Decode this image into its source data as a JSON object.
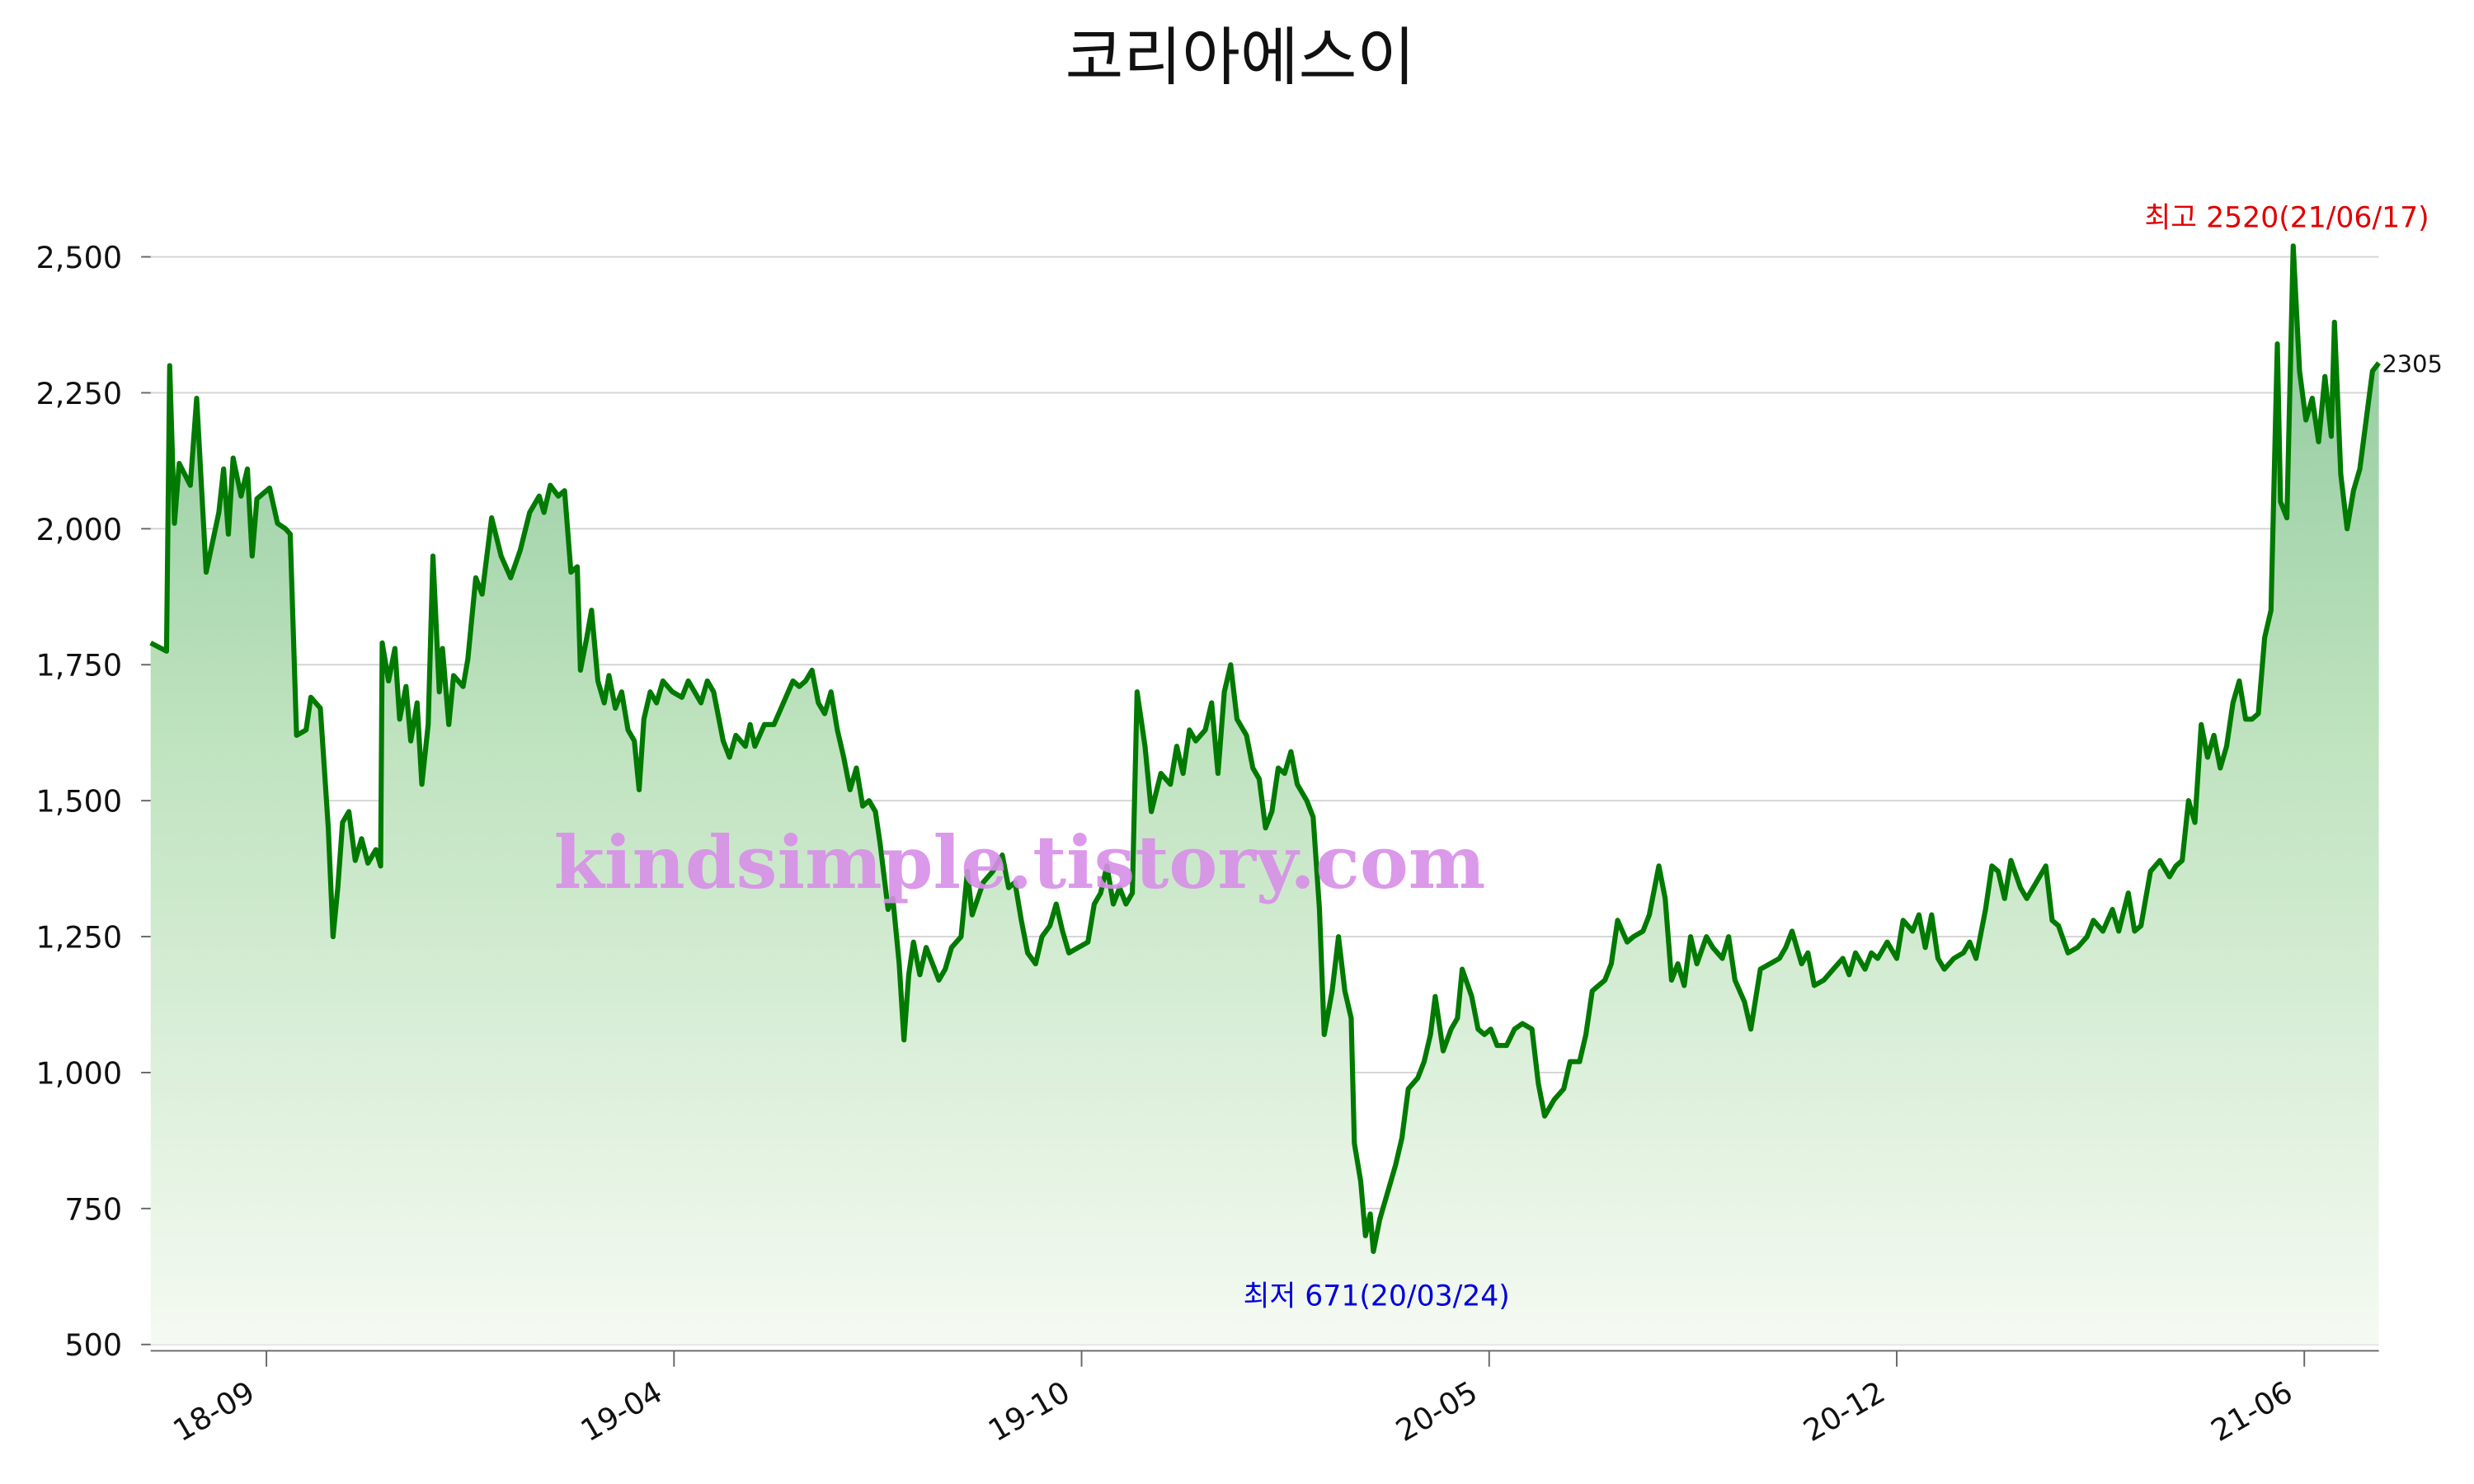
{
  "chart_data": {
    "type": "line",
    "title": "코리아에스이",
    "watermark": "kindsimple.tistory.com",
    "annotations": {
      "high": "최고 2520(21/06/17)",
      "low": "최저 671(20/03/24)"
    },
    "xlim": [
      0,
      1405
    ],
    "xticks": [
      {
        "value": 73,
        "label": "18-09"
      },
      {
        "value": 330,
        "label": "19-04"
      },
      {
        "value": 587,
        "label": "19-10"
      },
      {
        "value": 844,
        "label": "20-05"
      },
      {
        "value": 1101,
        "label": "20-12"
      },
      {
        "value": 1358,
        "label": "21-06"
      }
    ],
    "ylim": [
      500,
      2500
    ],
    "yticks": [
      {
        "value": 500,
        "label": "500"
      },
      {
        "value": 750,
        "label": "750"
      },
      {
        "value": 1000,
        "label": "1,000"
      },
      {
        "value": 1250,
        "label": "1,250"
      },
      {
        "value": 1500,
        "label": "1,500"
      },
      {
        "value": 1750,
        "label": "1,750"
      },
      {
        "value": 2000,
        "label": "2,000"
      },
      {
        "value": 2250,
        "label": "2,250"
      },
      {
        "value": 2500,
        "label": "2,500"
      }
    ],
    "grid": true,
    "series": [
      {
        "color": "#007a00",
        "x": [
          0,
          10,
          12,
          15,
          18,
          25,
          29,
          35,
          43,
          46,
          49,
          52,
          57,
          61,
          64,
          67,
          75,
          80,
          85,
          88,
          92,
          98,
          101,
          107,
          112,
          115,
          118,
          121,
          125,
          129,
          133,
          137,
          142,
          145,
          146,
          150,
          154,
          157,
          161,
          164,
          168,
          171,
          175,
          178,
          182,
          184,
          188,
          191,
          197,
          200,
          205,
          209,
          215,
          221,
          227,
          233,
          239,
          245,
          248,
          252,
          257,
          261,
          265,
          269,
          271,
          275,
          278,
          282,
          286,
          289,
          293,
          297,
          301,
          305,
          308,
          311,
          315,
          319,
          323,
          329,
          335,
          339,
          343,
          347,
          351,
          355,
          361,
          365,
          369,
          375,
          378,
          381,
          387,
          393,
          399,
          405,
          409,
          413,
          417,
          421,
          425,
          429,
          433,
          437,
          441,
          445,
          449,
          453,
          457,
          460,
          465,
          468,
          472,
          475,
          478,
          481,
          485,
          489,
          493,
          497,
          501,
          505,
          511,
          515,
          518,
          525,
          531,
          537,
          541,
          545,
          549,
          553,
          558,
          562,
          567,
          571,
          575,
          579,
          585,
          591,
          595,
          599,
          603,
          607,
          611,
          615,
          619,
          622,
          627,
          631,
          637,
          643,
          647,
          651,
          655,
          659,
          665,
          669,
          673,
          677,
          681,
          685,
          691,
          695,
          699,
          703,
          707,
          711,
          715,
          719,
          723,
          729,
          733,
          737,
          740,
          745,
          749,
          753,
          757,
          759,
          763,
          766,
          769,
          771,
          775,
          780,
          785,
          789,
          793,
          799,
          803,
          807,
          810,
          815,
          820,
          824,
          827,
          833,
          837,
          841,
          845,
          849,
          855,
          860,
          865,
          871,
          875,
          879,
          885,
          891,
          895,
          901,
          905,
          909,
          913,
          917,
          921,
          925,
          931,
          935,
          941,
          945,
          951,
          955,
          959,
          963,
          967,
          971,
          975,
          981,
          985,
          991,
          995,
          999,
          1005,
          1009,
          1015,
          1021,
          1027,
          1031,
          1035,
          1041,
          1045,
          1049,
          1055,
          1061,
          1067,
          1071,
          1075,
          1081,
          1085,
          1089,
          1095,
          1101,
          1105,
          1111,
          1115,
          1119,
          1123,
          1127,
          1131,
          1137,
          1143,
          1147,
          1151,
          1157,
          1161,
          1165,
          1169,
          1173,
          1179,
          1183,
          1189,
          1195,
          1199,
          1203,
          1209,
          1215,
          1221,
          1225,
          1231,
          1237,
          1241,
          1247,
          1251,
          1255,
          1261,
          1267,
          1273,
          1277,
          1281,
          1285,
          1289,
          1293,
          1297,
          1301,
          1305,
          1309,
          1313,
          1317,
          1321,
          1325,
          1329,
          1333,
          1337,
          1341,
          1343,
          1347,
          1351,
          1355,
          1359,
          1363,
          1367,
          1371,
          1375,
          1377,
          1381,
          1385,
          1389,
          1393,
          1397,
          1401,
          1405
        ],
        "values": [
          1790,
          1775,
          2300,
          2010,
          2120,
          2080,
          2240,
          1920,
          2030,
          2110,
          1990,
          2130,
          2060,
          2110,
          1950,
          2055,
          2075,
          2010,
          2000,
          1990,
          1620,
          1630,
          1690,
          1670,
          1450,
          1250,
          1340,
          1460,
          1480,
          1390,
          1430,
          1385,
          1410,
          1380,
          1790,
          1720,
          1780,
          1650,
          1710,
          1610,
          1680,
          1530,
          1640,
          1950,
          1700,
          1780,
          1640,
          1730,
          1710,
          1760,
          1910,
          1880,
          2020,
          1950,
          1910,
          1960,
          2030,
          2060,
          2030,
          2080,
          2060,
          2070,
          1920,
          1930,
          1740,
          1800,
          1850,
          1720,
          1680,
          1730,
          1670,
          1700,
          1630,
          1610,
          1520,
          1650,
          1700,
          1680,
          1720,
          1700,
          1690,
          1720,
          1700,
          1680,
          1720,
          1700,
          1610,
          1580,
          1620,
          1600,
          1640,
          1600,
          1640,
          1640,
          1680,
          1720,
          1710,
          1720,
          1740,
          1680,
          1660,
          1700,
          1630,
          1580,
          1520,
          1560,
          1490,
          1500,
          1480,
          1420,
          1300,
          1320,
          1200,
          1060,
          1180,
          1240,
          1180,
          1230,
          1200,
          1170,
          1190,
          1230,
          1250,
          1370,
          1290,
          1350,
          1370,
          1400,
          1340,
          1350,
          1280,
          1220,
          1200,
          1250,
          1270,
          1310,
          1260,
          1220,
          1230,
          1240,
          1310,
          1330,
          1380,
          1310,
          1340,
          1310,
          1330,
          1700,
          1600,
          1480,
          1550,
          1530,
          1600,
          1550,
          1630,
          1610,
          1630,
          1680,
          1550,
          1700,
          1750,
          1650,
          1620,
          1560,
          1540,
          1450,
          1480,
          1560,
          1550,
          1590,
          1530,
          1500,
          1470,
          1300,
          1070,
          1150,
          1250,
          1150,
          1100,
          870,
          800,
          700,
          740,
          671,
          730,
          780,
          830,
          880,
          970,
          990,
          1020,
          1070,
          1140,
          1040,
          1080,
          1100,
          1190,
          1140,
          1080,
          1070,
          1080,
          1050,
          1050,
          1080,
          1090,
          1080,
          980,
          920,
          950,
          970,
          1020,
          1020,
          1070,
          1150,
          1160,
          1170,
          1200,
          1280,
          1240,
          1250,
          1260,
          1290,
          1380,
          1320,
          1170,
          1200,
          1160,
          1250,
          1200,
          1250,
          1230,
          1210,
          1250,
          1170,
          1130,
          1080,
          1190,
          1200,
          1210,
          1230,
          1260,
          1200,
          1220,
          1160,
          1170,
          1190,
          1210,
          1180,
          1220,
          1190,
          1220,
          1210,
          1240,
          1210,
          1280,
          1260,
          1290,
          1230,
          1290,
          1210,
          1190,
          1210,
          1220,
          1240,
          1210,
          1300,
          1380,
          1370,
          1320,
          1390,
          1340,
          1320,
          1350,
          1380,
          1280,
          1270,
          1220,
          1230,
          1250,
          1280,
          1260,
          1300,
          1260,
          1330,
          1260,
          1270,
          1370,
          1390,
          1360,
          1380,
          1390,
          1500,
          1460,
          1640,
          1580,
          1620,
          1560,
          1600,
          1680,
          1720,
          1650,
          1650,
          1660,
          1800,
          1850,
          2340,
          2050,
          2020,
          2520,
          2290,
          2200,
          2240,
          2160,
          2280,
          2170,
          2380,
          2100,
          2000,
          2070,
          2110,
          2200,
          2290,
          2305
        ]
      }
    ]
  }
}
